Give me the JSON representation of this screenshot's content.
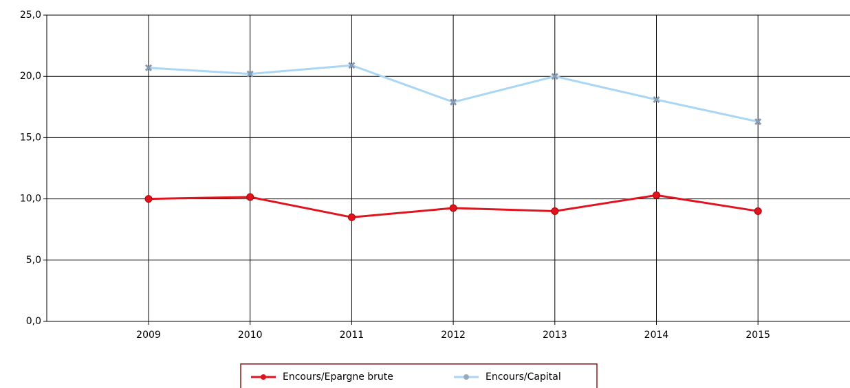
{
  "chart_data": {
    "type": "line",
    "categories": [
      "2009",
      "2010",
      "2011",
      "2012",
      "2013",
      "2014",
      "2015"
    ],
    "series": [
      {
        "name": "Encours/Epargne brute",
        "color": "#e0141e",
        "values": [
          10.0,
          10.15,
          8.5,
          9.25,
          9.0,
          10.3,
          9.0
        ]
      },
      {
        "name": "Encours/Capital",
        "color": "#a9d6f5",
        "values": [
          20.7,
          20.2,
          20.9,
          17.9,
          20.0,
          18.1,
          16.3
        ]
      }
    ],
    "ylim": [
      0,
      25
    ],
    "yticks": [
      {
        "value": 0,
        "label": "0,0"
      },
      {
        "value": 5,
        "label": "5,0"
      },
      {
        "value": 10,
        "label": "10,0"
      },
      {
        "value": 15,
        "label": "15,0"
      },
      {
        "value": 20,
        "label": "20,0"
      },
      {
        "value": 25,
        "label": "25,0"
      }
    ],
    "grid": true,
    "legend": "bottom"
  }
}
